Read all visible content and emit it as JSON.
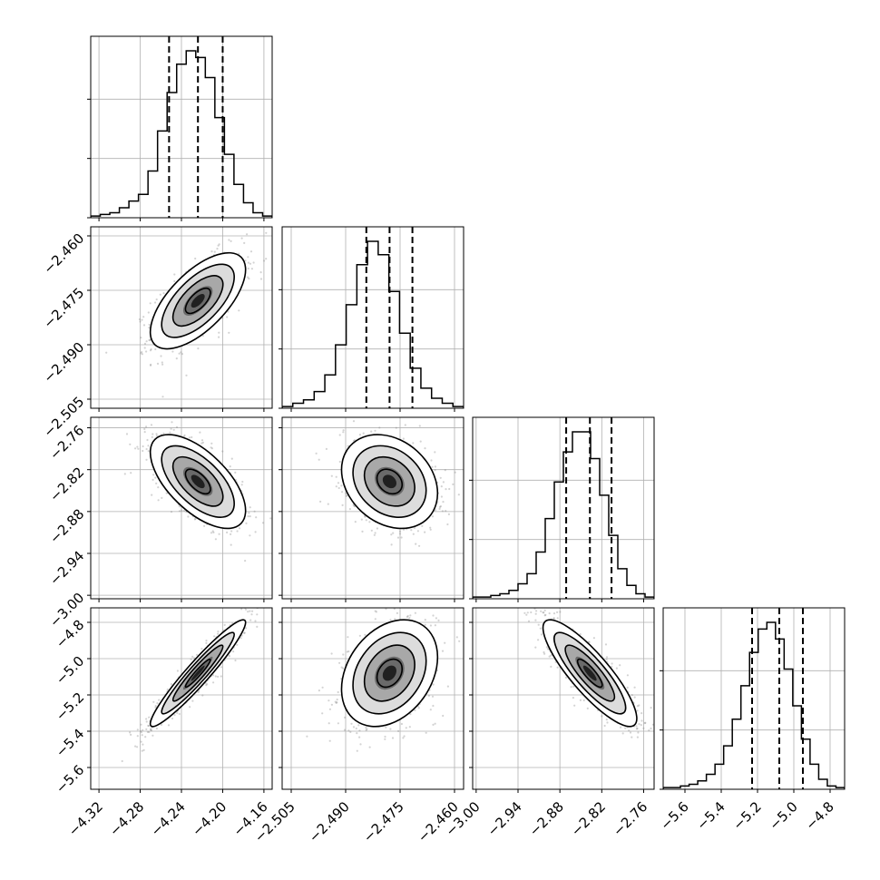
{
  "chart_data": {
    "type": "corner",
    "grid": true,
    "colors": {
      "hist_line": "#000000",
      "contour": "#000000",
      "quantile": "#000000",
      "points": "#808080",
      "grid": "#b0b0b0"
    },
    "params": [
      {
        "range": [
          -4.328,
          -4.152
        ],
        "ticks": [
          -4.32,
          -4.28,
          -4.24,
          -4.2,
          -4.16
        ],
        "tick_labels": [
          "−4.32",
          "−4.28",
          "−4.24",
          "−4.20",
          "−4.16"
        ],
        "quantiles": [
          -4.252,
          -4.224,
          -4.2
        ],
        "mean": -4.224,
        "sd": 0.022,
        "hist_counts": [
          1,
          2,
          3,
          6,
          10,
          14,
          28,
          52,
          75,
          92,
          100,
          96,
          84,
          60,
          38,
          20,
          9,
          3,
          1
        ]
      },
      {
        "range": [
          -2.5075,
          -2.4575
        ],
        "ticks": [
          -2.505,
          -2.49,
          -2.475,
          -2.46
        ],
        "tick_labels": [
          "−2.505",
          "−2.490",
          "−2.475",
          "−2.460"
        ],
        "quantiles": [
          -2.4843,
          -2.4779,
          -2.4716
        ],
        "mean": -2.4779,
        "sd": 0.0063,
        "hist_counts": [
          1,
          3,
          5,
          10,
          20,
          38,
          62,
          86,
          100,
          92,
          70,
          45,
          24,
          12,
          6,
          3,
          1
        ]
      },
      {
        "range": [
          -3.005,
          -2.745
        ],
        "ticks": [
          -3.0,
          -2.94,
          -2.88,
          -2.82,
          -2.76
        ],
        "tick_labels": [
          "−3.00",
          "−2.94",
          "−2.88",
          "−2.82",
          "−2.76"
        ],
        "quantiles": [
          -2.871,
          -2.837,
          -2.806
        ],
        "mean": -2.837,
        "sd": 0.032,
        "hist_counts": [
          1,
          1,
          2,
          3,
          5,
          9,
          15,
          28,
          48,
          70,
          88,
          100,
          100,
          84,
          62,
          38,
          18,
          8,
          3,
          1
        ]
      },
      {
        "range": [
          -5.72,
          -4.72
        ],
        "ticks": [
          -5.6,
          -5.4,
          -5.2,
          -5.0,
          -4.8
        ],
        "tick_labels": [
          "−5.6",
          "−5.4",
          "−5.2",
          "−5.0",
          "−4.8"
        ],
        "quantiles": [
          -5.23,
          -5.08,
          -4.95
        ],
        "mean": -5.08,
        "sd": 0.14,
        "hist_counts": [
          1,
          1,
          2,
          3,
          5,
          9,
          15,
          26,
          42,
          62,
          82,
          96,
          100,
          90,
          72,
          50,
          30,
          15,
          6,
          2,
          1
        ]
      }
    ],
    "correlations": [
      {
        "row": 1,
        "col": 0,
        "r": 0.65
      },
      {
        "row": 2,
        "col": 0,
        "r": -0.62
      },
      {
        "row": 2,
        "col": 1,
        "r": -0.25
      },
      {
        "row": 3,
        "col": 0,
        "r": 0.95
      },
      {
        "row": 3,
        "col": 1,
        "r": 0.3
      },
      {
        "row": 3,
        "col": 2,
        "r": -0.85
      }
    ]
  }
}
